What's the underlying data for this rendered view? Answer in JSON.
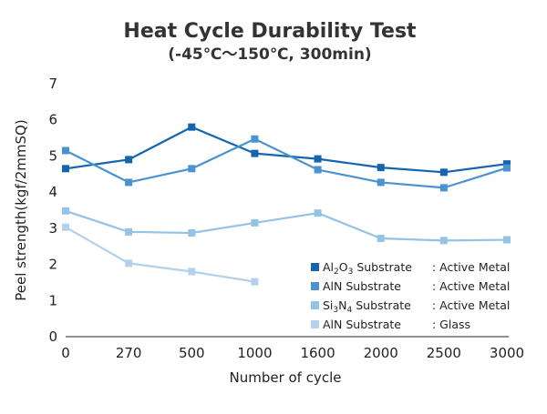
{
  "chart_data": {
    "type": "line",
    "title": "Heat Cycle Durability Test",
    "subtitle": "(-45℃～150℃, 300min)",
    "xlabel": "Number of cycle",
    "ylabel": "Peel strength(kgf/2mmSQ)",
    "categories": [
      "0",
      "270",
      "500",
      "1000",
      "1600",
      "2000",
      "2500",
      "3000"
    ],
    "yticks": [
      "0",
      "1",
      "2",
      "3",
      "4",
      "5",
      "6",
      "7"
    ],
    "ylim": [
      0,
      7
    ],
    "grid": false,
    "legend_position": "bottom-right",
    "series": [
      {
        "name": "Al₂O₃ Substrate　: Active Metal",
        "legend_parts": [
          {
            "text": "Al"
          },
          {
            "text": "2",
            "sub": true
          },
          {
            "text": "O"
          },
          {
            "text": "3",
            "sub": true
          },
          {
            "text": " Substrate"
          },
          {
            "text": ": Active Metal",
            "col2": true
          }
        ],
        "color": "#1464AE",
        "values": [
          4.65,
          4.9,
          5.8,
          5.07,
          4.92,
          4.68,
          4.55,
          4.78
        ]
      },
      {
        "name": "AlN Substrate　: Active Metal",
        "legend_parts": [
          {
            "text": "AlN Substrate"
          },
          {
            "text": ": Active Metal",
            "col2": true
          }
        ],
        "color": "#4A93D0",
        "values": [
          5.15,
          4.27,
          4.65,
          5.47,
          4.62,
          4.27,
          4.12,
          4.67
        ]
      },
      {
        "name": "Si₃N₄ Substrate　: Active Metal",
        "legend_parts": [
          {
            "text": "Si"
          },
          {
            "text": "3",
            "sub": true
          },
          {
            "text": "N"
          },
          {
            "text": "4",
            "sub": true
          },
          {
            "text": " Substrate"
          },
          {
            "text": ": Active Metal",
            "col2": true
          }
        ],
        "color": "#94C3E6",
        "values": [
          3.48,
          2.9,
          2.87,
          3.15,
          3.42,
          2.72,
          2.66,
          2.68
        ]
      },
      {
        "name": "AlN Substrate　: Glass",
        "legend_parts": [
          {
            "text": "AlN Substrate"
          },
          {
            "text": ": Glass",
            "col2": true
          }
        ],
        "color": "#B3D1EC",
        "values": [
          3.03,
          2.03,
          1.8,
          1.52,
          null,
          null,
          null,
          null
        ]
      }
    ]
  }
}
